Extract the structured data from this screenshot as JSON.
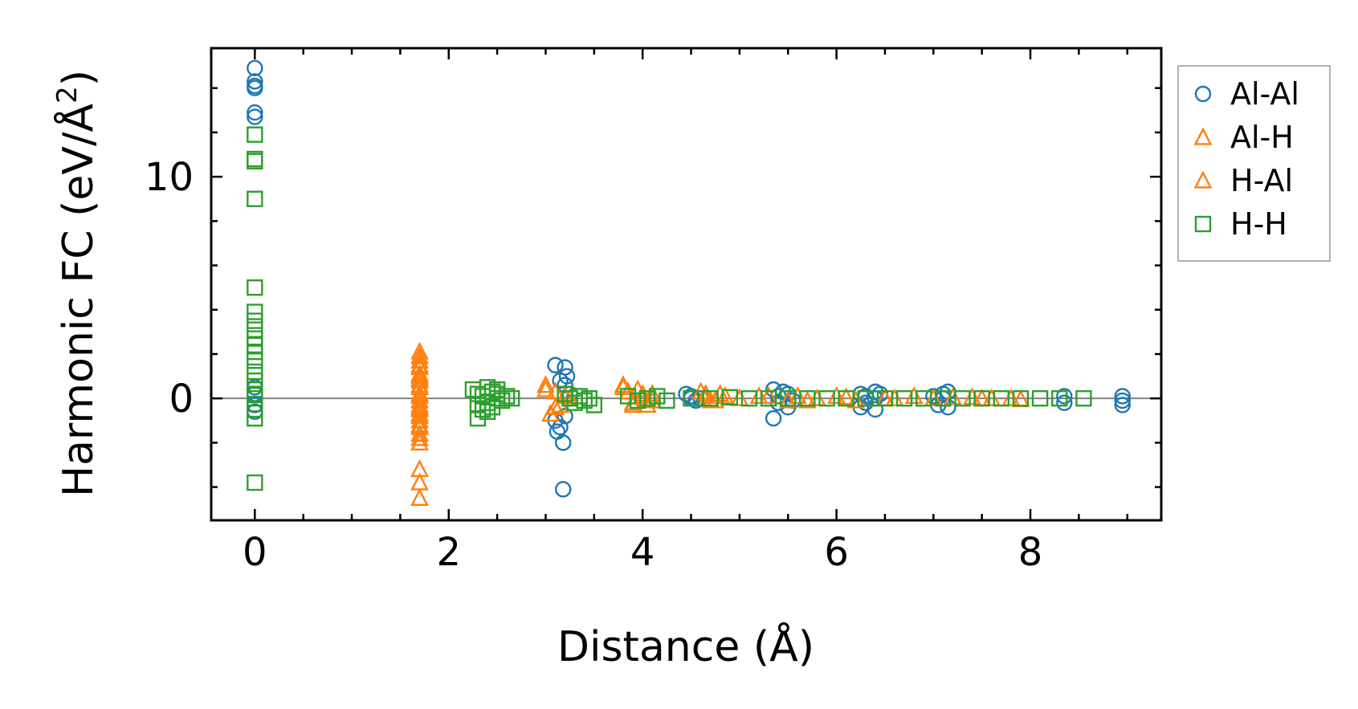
{
  "chart_data": {
    "type": "scatter",
    "xlabel": "Distance (Å)",
    "ylabel_main": "Harmonic FC (eV/Å",
    "ylabel_sup": "2",
    "ylabel_close": ")",
    "xlim": [
      -0.45,
      9.35
    ],
    "ylim": [
      -5.5,
      15.8
    ],
    "xticks": [
      0,
      2,
      4,
      6,
      8
    ],
    "xtick_labels": [
      "0",
      "2",
      "4",
      "6",
      "8"
    ],
    "yticks": [
      0,
      10
    ],
    "ytick_labels": [
      "0",
      "10"
    ],
    "x_minor_step": 0.5,
    "y_minor_step": 2,
    "zero_line": true,
    "legend_position": "right-outside-top",
    "series": [
      {
        "name": "Al-Al",
        "marker": "circle",
        "color": "#1f77b4",
        "x": [
          0,
          0,
          0,
          0,
          0,
          0,
          0,
          0,
          0,
          0,
          3.1,
          3.1,
          3.12,
          3.15,
          3.15,
          3.18,
          3.18,
          3.2,
          3.2,
          3.2,
          3.22,
          3.25,
          4.45,
          4.5,
          4.5,
          4.55,
          4.6,
          5.35,
          5.35,
          5.4,
          5.4,
          5.45,
          5.5,
          5.5,
          5.55,
          6.25,
          6.25,
          6.3,
          6.3,
          6.4,
          6.4,
          6.4,
          6.45,
          7.0,
          7.05,
          7.1,
          7.1,
          7.15,
          7.15,
          8.35,
          8.35,
          8.95,
          8.95,
          8.95
        ],
        "y": [
          14.9,
          14.3,
          14.1,
          14.0,
          12.9,
          12.7,
          0.5,
          0.2,
          -0.3,
          -0.6,
          1.5,
          -1.0,
          -1.5,
          -1.3,
          0.8,
          -4.1,
          -2.0,
          1.4,
          -0.8,
          0.6,
          1.0,
          0.2,
          0.2,
          0.0,
          0.1,
          -0.1,
          0.0,
          0.4,
          -0.9,
          0.1,
          -0.2,
          0.3,
          -0.4,
          0.2,
          -0.1,
          0.2,
          -0.4,
          0.1,
          -0.2,
          0.3,
          -0.5,
          0.0,
          0.2,
          0.1,
          -0.3,
          0.0,
          0.2,
          -0.4,
          0.3,
          0.1,
          -0.2,
          0.1,
          -0.1,
          -0.3
        ]
      },
      {
        "name": "Al-H",
        "marker": "triangle",
        "color": "#ff7f0e",
        "x": [
          1.7,
          1.7,
          1.7,
          1.7,
          1.7,
          1.7,
          1.7,
          1.7,
          1.7,
          1.7,
          1.7,
          1.7,
          1.7,
          1.7,
          1.7,
          1.7,
          1.7,
          1.7,
          1.7,
          1.7,
          3.0,
          3.05,
          3.1,
          3.15,
          3.2,
          3.25,
          3.8,
          3.85,
          3.9,
          3.95,
          4.0,
          4.05,
          4.1,
          4.6,
          4.65,
          4.7,
          4.8,
          5.0,
          5.2,
          5.5,
          5.6,
          5.8,
          6.0,
          6.2,
          6.5,
          6.8,
          7.0,
          7.4,
          7.6,
          7.9
        ],
        "y": [
          2.1,
          1.7,
          1.4,
          1.1,
          0.8,
          0.5,
          0.2,
          -0.1,
          -0.4,
          -0.7,
          -1.0,
          -1.3,
          -1.6,
          -2.0,
          -3.2,
          -3.8,
          -4.5,
          1.9,
          0.9,
          -0.5,
          0.6,
          -0.7,
          0.3,
          -0.3,
          0.1,
          0.0,
          0.6,
          0.3,
          -0.2,
          0.4,
          0.1,
          -0.3,
          0.2,
          0.3,
          0.1,
          -0.1,
          0.2,
          0.0,
          0.1,
          -0.1,
          0.1,
          0.0,
          0.1,
          -0.1,
          0.0,
          0.1,
          0.0,
          0.05,
          0.0,
          -0.05
        ]
      },
      {
        "name": "H-Al",
        "marker": "triangle",
        "color": "#ff7f0e",
        "x": [
          1.7,
          1.7,
          1.7,
          1.7,
          1.7,
          1.7,
          1.7,
          1.7,
          3.0,
          3.1,
          3.2,
          3.8,
          3.9,
          4.0,
          4.1,
          4.65,
          4.75,
          4.85,
          5.3,
          5.7,
          6.1,
          6.6,
          7.2,
          7.5,
          7.8
        ],
        "y": [
          1.5,
          1.0,
          0.6,
          0.1,
          -0.3,
          -0.8,
          -1.2,
          -1.8,
          0.4,
          -0.4,
          0.1,
          0.5,
          -0.3,
          0.2,
          -0.1,
          0.2,
          -0.1,
          0.1,
          0.1,
          -0.1,
          0.05,
          0.0,
          0.05,
          0.0,
          0.0
        ]
      },
      {
        "name": "H-H",
        "marker": "square",
        "color": "#2ca02c",
        "x": [
          0,
          0,
          0,
          0,
          0,
          0,
          0,
          0,
          0,
          0,
          0,
          0,
          0,
          0,
          0,
          0,
          0,
          0,
          0,
          0,
          2.25,
          2.3,
          2.3,
          2.35,
          2.35,
          2.4,
          2.4,
          2.45,
          2.45,
          2.5,
          2.5,
          2.55,
          2.6,
          2.65,
          2.3,
          2.4,
          2.5,
          3.2,
          3.25,
          3.3,
          3.35,
          3.4,
          3.45,
          3.5,
          3.85,
          3.95,
          4.05,
          4.15,
          4.25,
          4.5,
          4.7,
          4.9,
          5.1,
          5.3,
          5.5,
          5.7,
          5.9,
          6.1,
          6.3,
          6.5,
          6.7,
          6.9,
          7.1,
          7.3,
          7.5,
          7.7,
          7.9,
          8.1,
          8.3,
          8.55
        ],
        "y": [
          11.9,
          10.8,
          10.7,
          9.0,
          5.0,
          3.9,
          3.5,
          3.1,
          2.7,
          2.4,
          2.1,
          1.7,
          1.2,
          0.8,
          0.4,
          0.0,
          -0.5,
          -0.9,
          -3.8,
          0.2,
          0.4,
          -0.3,
          0.2,
          -0.5,
          0.1,
          0.5,
          -0.2,
          0.3,
          -0.4,
          0.2,
          0.0,
          -0.1,
          0.1,
          0.0,
          -0.9,
          -0.6,
          0.4,
          0.2,
          0.0,
          -0.2,
          0.1,
          -0.1,
          0.0,
          -0.3,
          0.1,
          -0.1,
          0.0,
          0.1,
          -0.1,
          0.0,
          0.0,
          0.05,
          0.0,
          0.0,
          0.0,
          0.0,
          0.0,
          0.0,
          0.0,
          0.0,
          0.0,
          0.0,
          0.0,
          0.0,
          0.0,
          0.0,
          0.0,
          0.0,
          0.0,
          0.0
        ]
      }
    ]
  }
}
